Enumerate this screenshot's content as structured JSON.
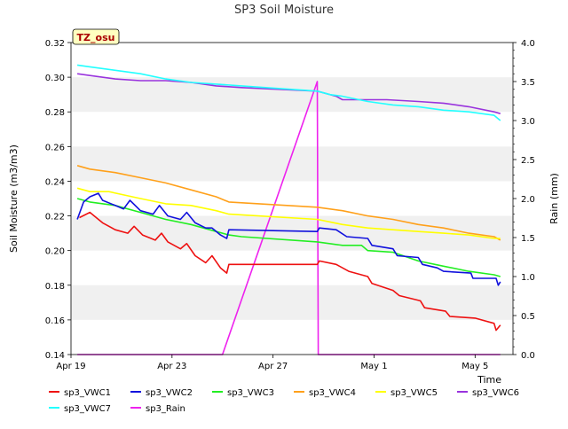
{
  "chart_data": {
    "type": "line",
    "title": "SP3 Soil Moisture",
    "xlabel": "Time",
    "ylabel": "Soil Moisture (m3/m3)",
    "y2label": "Rain (mm)",
    "site_label": "TZ_osu",
    "x_range": [
      "2024-04-19",
      "2024-05-06"
    ],
    "ylim": [
      0.14,
      0.32
    ],
    "y2lim": [
      0.0,
      4.0
    ],
    "x_ticks": [
      {
        "date": "2024-04-19",
        "label": "Apr 19"
      },
      {
        "date": "2024-04-23",
        "label": "Apr 23"
      },
      {
        "date": "2024-04-27",
        "label": "Apr 27"
      },
      {
        "date": "2024-05-01",
        "label": "May 1"
      },
      {
        "date": "2024-05-05",
        "label": "May 5"
      }
    ],
    "y_ticks": [
      "0.14",
      "0.16",
      "0.18",
      "0.20",
      "0.22",
      "0.24",
      "0.26",
      "0.28",
      "0.30",
      "0.32"
    ],
    "y2_ticks": [
      "0.0",
      "0.5",
      "1.0",
      "1.5",
      "2.0",
      "2.5",
      "3.0",
      "3.5",
      "4.0"
    ],
    "grid": "horizontal bands",
    "legend_position": "bottom",
    "series": [
      {
        "name": "sp3_VWC1",
        "color": "#ee1111",
        "axis": "left",
        "points": [
          [
            "2024-04-19T08:00",
            0.219
          ],
          [
            "2024-04-19T18:00",
            0.222
          ],
          [
            "2024-04-20T06:00",
            0.216
          ],
          [
            "2024-04-20T18:00",
            0.212
          ],
          [
            "2024-04-21T06:00",
            0.21
          ],
          [
            "2024-04-21T12:00",
            0.214
          ],
          [
            "2024-04-21T20:00",
            0.209
          ],
          [
            "2024-04-22T08:00",
            0.206
          ],
          [
            "2024-04-22T14:00",
            0.21
          ],
          [
            "2024-04-22T20:00",
            0.205
          ],
          [
            "2024-04-23T08:00",
            0.201
          ],
          [
            "2024-04-23T14:00",
            0.204
          ],
          [
            "2024-04-23T22:00",
            0.197
          ],
          [
            "2024-04-24T08:00",
            0.193
          ],
          [
            "2024-04-24T14:00",
            0.197
          ],
          [
            "2024-04-24T22:00",
            0.19
          ],
          [
            "2024-04-25T04:00",
            0.187
          ],
          [
            "2024-04-25T06:00",
            0.192
          ],
          [
            "2024-04-28T18:00",
            0.192
          ],
          [
            "2024-04-28T20:00",
            0.194
          ],
          [
            "2024-04-29T12:00",
            0.192
          ],
          [
            "2024-04-30T00:00",
            0.188
          ],
          [
            "2024-04-30T18:00",
            0.185
          ],
          [
            "2024-04-30T22:00",
            0.181
          ],
          [
            "2024-05-01T18:00",
            0.177
          ],
          [
            "2024-05-02T00:00",
            0.174
          ],
          [
            "2024-05-02T20:00",
            0.171
          ],
          [
            "2024-05-03T00:00",
            0.167
          ],
          [
            "2024-05-03T20:00",
            0.165
          ],
          [
            "2024-05-04T00:00",
            0.162
          ],
          [
            "2024-05-05T00:00",
            0.161
          ],
          [
            "2024-05-05T18:00",
            0.158
          ],
          [
            "2024-05-05T20:00",
            0.154
          ],
          [
            "2024-05-06T00:00",
            0.157
          ]
        ]
      },
      {
        "name": "sp3_VWC2",
        "color": "#1111dd",
        "axis": "left",
        "points": [
          [
            "2024-04-19T06:00",
            0.218
          ],
          [
            "2024-04-19T12:00",
            0.228
          ],
          [
            "2024-04-19T18:00",
            0.231
          ],
          [
            "2024-04-20T02:00",
            0.233
          ],
          [
            "2024-04-20T06:00",
            0.229
          ],
          [
            "2024-04-20T18:00",
            0.226
          ],
          [
            "2024-04-21T02:00",
            0.224
          ],
          [
            "2024-04-21T08:00",
            0.229
          ],
          [
            "2024-04-21T18:00",
            0.223
          ],
          [
            "2024-04-22T06:00",
            0.221
          ],
          [
            "2024-04-22T12:00",
            0.226
          ],
          [
            "2024-04-22T20:00",
            0.22
          ],
          [
            "2024-04-23T08:00",
            0.218
          ],
          [
            "2024-04-23T14:00",
            0.222
          ],
          [
            "2024-04-23T22:00",
            0.216
          ],
          [
            "2024-04-24T08:00",
            0.213
          ],
          [
            "2024-04-24T14:00",
            0.213
          ],
          [
            "2024-04-24T22:00",
            0.209
          ],
          [
            "2024-04-25T04:00",
            0.207
          ],
          [
            "2024-04-25T06:00",
            0.212
          ],
          [
            "2024-04-28T18:00",
            0.211
          ],
          [
            "2024-04-28T20:00",
            0.213
          ],
          [
            "2024-04-29T12:00",
            0.212
          ],
          [
            "2024-04-29T22:00",
            0.208
          ],
          [
            "2024-04-30T18:00",
            0.207
          ],
          [
            "2024-04-30T22:00",
            0.203
          ],
          [
            "2024-05-01T18:00",
            0.201
          ],
          [
            "2024-05-01T22:00",
            0.197
          ],
          [
            "2024-05-02T18:00",
            0.196
          ],
          [
            "2024-05-02T22:00",
            0.192
          ],
          [
            "2024-05-03T12:00",
            0.19
          ],
          [
            "2024-05-03T18:00",
            0.188
          ],
          [
            "2024-05-04T20:00",
            0.187
          ],
          [
            "2024-05-04T22:00",
            0.184
          ],
          [
            "2024-05-05T20:00",
            0.184
          ],
          [
            "2024-05-05T22:00",
            0.18
          ],
          [
            "2024-05-06T00:00",
            0.182
          ]
        ]
      },
      {
        "name": "sp3_VWC3",
        "color": "#22ee22",
        "axis": "left",
        "points": [
          [
            "2024-04-19T06:00",
            0.23
          ],
          [
            "2024-04-19T18:00",
            0.228
          ],
          [
            "2024-04-20T18:00",
            0.226
          ],
          [
            "2024-04-21T18:00",
            0.222
          ],
          [
            "2024-04-22T18:00",
            0.218
          ],
          [
            "2024-04-23T18:00",
            0.215
          ],
          [
            "2024-04-24T18:00",
            0.211
          ],
          [
            "2024-04-25T06:00",
            0.209
          ],
          [
            "2024-04-25T18:00",
            0.208
          ],
          [
            "2024-04-28T18:00",
            0.205
          ],
          [
            "2024-04-29T18:00",
            0.203
          ],
          [
            "2024-04-30T12:00",
            0.203
          ],
          [
            "2024-04-30T18:00",
            0.2
          ],
          [
            "2024-05-01T18:00",
            0.199
          ],
          [
            "2024-05-02T18:00",
            0.194
          ],
          [
            "2024-05-03T18:00",
            0.191
          ],
          [
            "2024-05-04T18:00",
            0.188
          ],
          [
            "2024-05-05T18:00",
            0.186
          ],
          [
            "2024-05-06T00:00",
            0.185
          ]
        ]
      },
      {
        "name": "sp3_VWC4",
        "color": "#ffa01a",
        "axis": "left",
        "points": [
          [
            "2024-04-19T06:00",
            0.249
          ],
          [
            "2024-04-19T18:00",
            0.247
          ],
          [
            "2024-04-20T18:00",
            0.245
          ],
          [
            "2024-04-21T18:00",
            0.242
          ],
          [
            "2024-04-22T18:00",
            0.239
          ],
          [
            "2024-04-23T18:00",
            0.235
          ],
          [
            "2024-04-24T18:00",
            0.231
          ],
          [
            "2024-04-25T06:00",
            0.228
          ],
          [
            "2024-04-28T18:00",
            0.225
          ],
          [
            "2024-04-29T18:00",
            0.223
          ],
          [
            "2024-04-30T18:00",
            0.22
          ],
          [
            "2024-05-01T18:00",
            0.218
          ],
          [
            "2024-05-02T18:00",
            0.215
          ],
          [
            "2024-05-03T18:00",
            0.213
          ],
          [
            "2024-05-04T18:00",
            0.21
          ],
          [
            "2024-05-05T18:00",
            0.208
          ],
          [
            "2024-05-06T00:00",
            0.206
          ]
        ]
      },
      {
        "name": "sp3_VWC5",
        "color": "#ffff00",
        "axis": "left",
        "points": [
          [
            "2024-04-19T06:00",
            0.236
          ],
          [
            "2024-04-19T18:00",
            0.234
          ],
          [
            "2024-04-20T12:00",
            0.234
          ],
          [
            "2024-04-21T18:00",
            0.23
          ],
          [
            "2024-04-22T18:00",
            0.227
          ],
          [
            "2024-04-23T18:00",
            0.226
          ],
          [
            "2024-04-24T18:00",
            0.223
          ],
          [
            "2024-04-25T06:00",
            0.221
          ],
          [
            "2024-04-28T18:00",
            0.218
          ],
          [
            "2024-04-29T18:00",
            0.215
          ],
          [
            "2024-04-30T18:00",
            0.213
          ],
          [
            "2024-05-01T18:00",
            0.212
          ],
          [
            "2024-05-02T18:00",
            0.211
          ],
          [
            "2024-05-03T18:00",
            0.21
          ],
          [
            "2024-05-04T18:00",
            0.209
          ],
          [
            "2024-05-05T18:00",
            0.207
          ],
          [
            "2024-05-06T00:00",
            0.207
          ]
        ]
      },
      {
        "name": "sp3_VWC6",
        "color": "#9933dd",
        "axis": "left",
        "points": [
          [
            "2024-04-19T06:00",
            0.302
          ],
          [
            "2024-04-19T18:00",
            0.301
          ],
          [
            "2024-04-20T18:00",
            0.299
          ],
          [
            "2024-04-21T18:00",
            0.298
          ],
          [
            "2024-04-22T18:00",
            0.298
          ],
          [
            "2024-04-23T18:00",
            0.297
          ],
          [
            "2024-04-24T18:00",
            0.295
          ],
          [
            "2024-04-25T18:00",
            0.294
          ],
          [
            "2024-04-28T18:00",
            0.292
          ],
          [
            "2024-04-29T12:00",
            0.289
          ],
          [
            "2024-04-29T18:00",
            0.287
          ],
          [
            "2024-05-01T12:00",
            0.287
          ],
          [
            "2024-05-02T18:00",
            0.286
          ],
          [
            "2024-05-03T18:00",
            0.285
          ],
          [
            "2024-05-04T18:00",
            0.283
          ],
          [
            "2024-05-05T18:00",
            0.28
          ],
          [
            "2024-05-06T00:00",
            0.279
          ]
        ]
      },
      {
        "name": "sp3_VWC7",
        "color": "#22ffff",
        "axis": "left",
        "points": [
          [
            "2024-04-19T06:00",
            0.307
          ],
          [
            "2024-04-19T18:00",
            0.306
          ],
          [
            "2024-04-20T18:00",
            0.304
          ],
          [
            "2024-04-21T18:00",
            0.302
          ],
          [
            "2024-04-22T18:00",
            0.299
          ],
          [
            "2024-04-23T18:00",
            0.297
          ],
          [
            "2024-04-24T18:00",
            0.296
          ],
          [
            "2024-04-25T18:00",
            0.295
          ],
          [
            "2024-04-28T18:00",
            0.292
          ],
          [
            "2024-04-29T06:00",
            0.29
          ],
          [
            "2024-04-29T18:00",
            0.289
          ],
          [
            "2024-04-30T18:00",
            0.286
          ],
          [
            "2024-05-01T18:00",
            0.284
          ],
          [
            "2024-05-02T18:00",
            0.283
          ],
          [
            "2024-05-03T18:00",
            0.281
          ],
          [
            "2024-05-04T18:00",
            0.28
          ],
          [
            "2024-05-05T18:00",
            0.278
          ],
          [
            "2024-05-06T00:00",
            0.275
          ]
        ]
      },
      {
        "name": "sp3_Rain",
        "color": "#ee22ee",
        "axis": "right",
        "points": [
          [
            "2024-04-19T06:00",
            0.0
          ],
          [
            "2024-04-25T00:00",
            0.0
          ],
          [
            "2024-04-28T18:00",
            3.5
          ],
          [
            "2024-04-28T19:00",
            0.0
          ],
          [
            "2024-05-06T00:00",
            0.0
          ]
        ]
      }
    ]
  }
}
